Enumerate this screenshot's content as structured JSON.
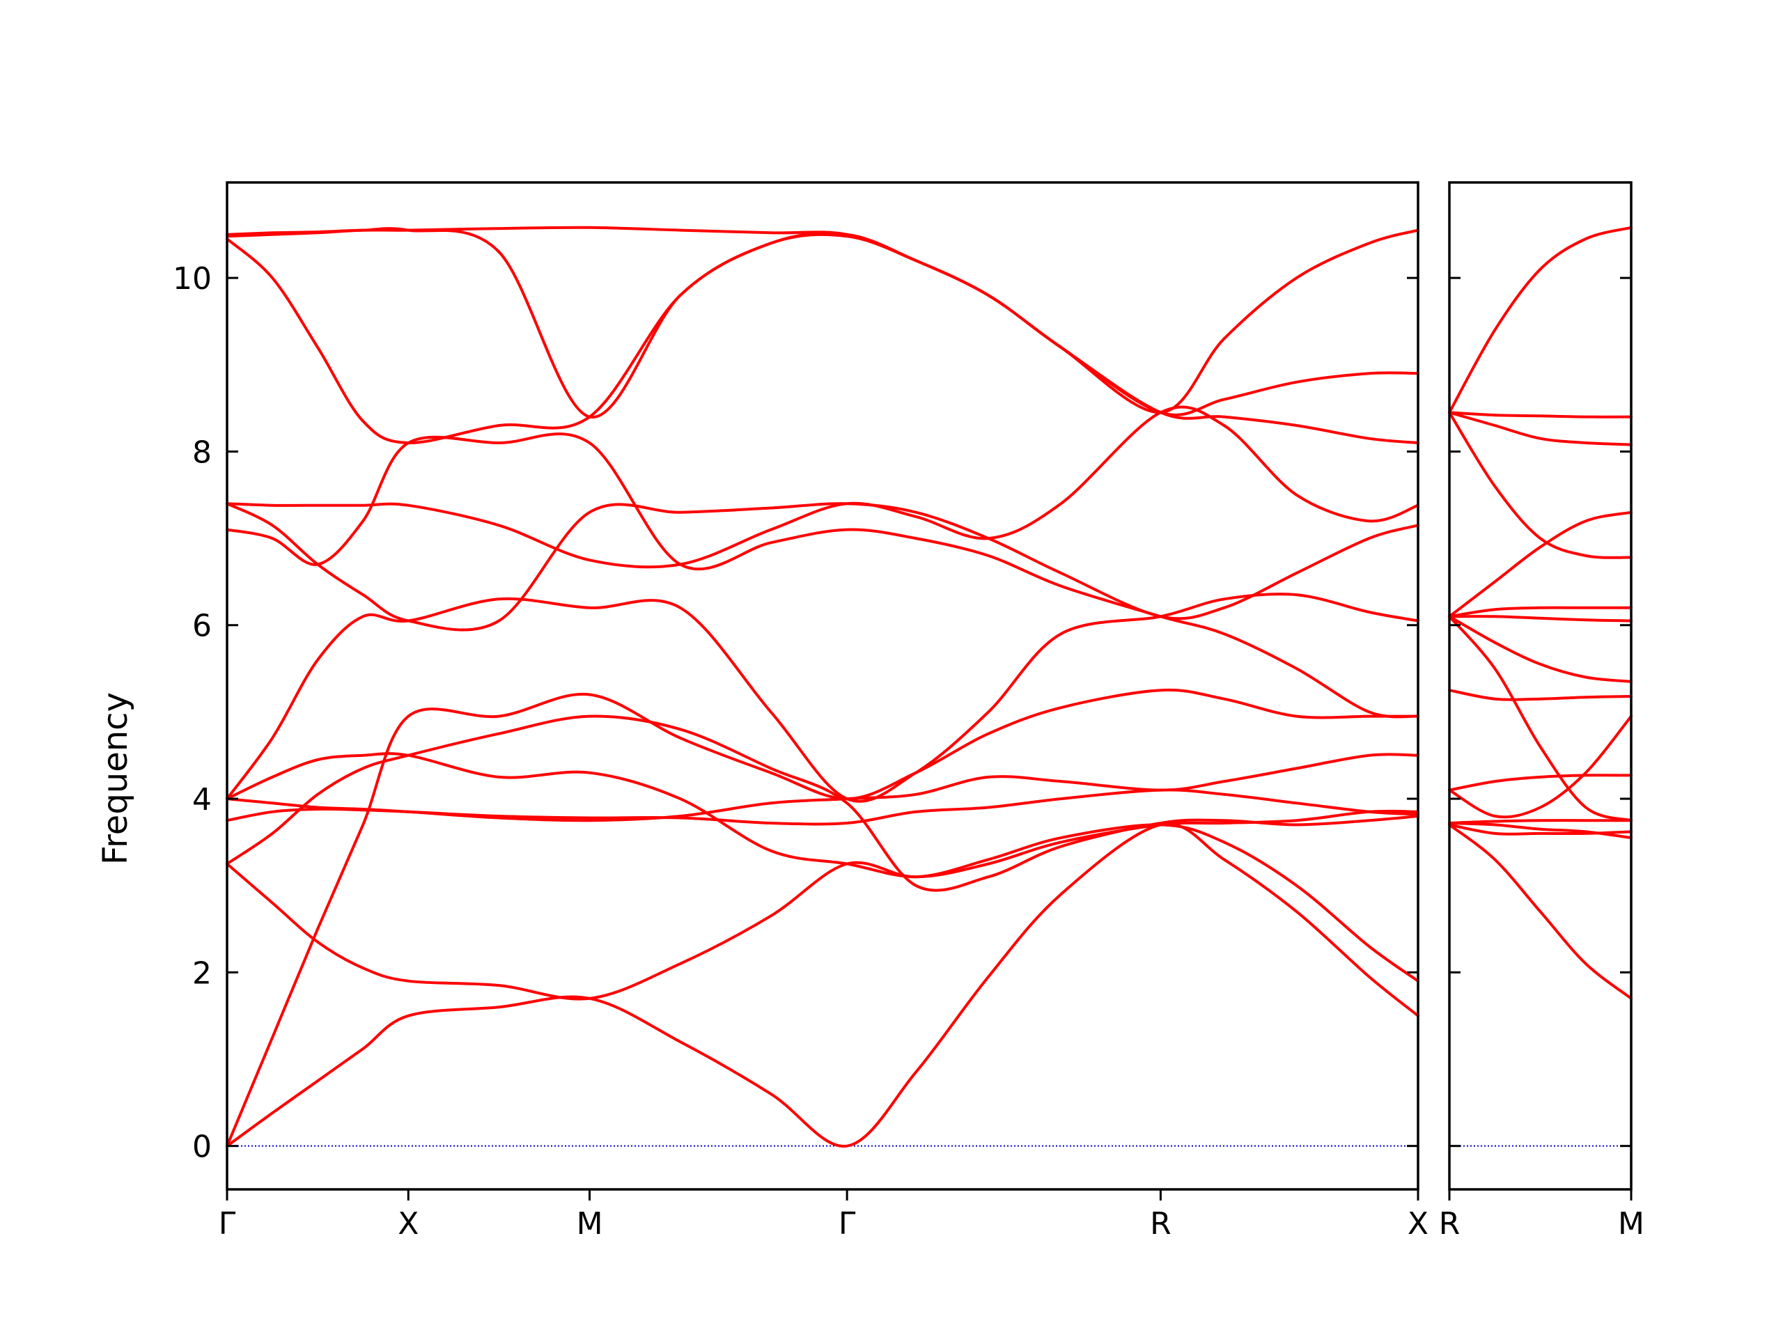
{
  "chart_data": {
    "type": "line",
    "title": "",
    "ylabel": "Frequency",
    "ylim": [
      -0.5,
      11.1
    ],
    "yticks": [
      0,
      2,
      4,
      6,
      8,
      10
    ],
    "grid": false,
    "series_color": "#ff0000",
    "zero_line_color": "#0000cc",
    "panels": [
      {
        "x_ticks": [
          {
            "label": "Γ",
            "x": 0
          },
          {
            "label": "X",
            "x": 1
          },
          {
            "label": "M",
            "x": 2
          },
          {
            "label": "Γ",
            "x": 3.42
          },
          {
            "label": "R",
            "x": 5.15
          },
          {
            "label": "X",
            "x": 6.57
          }
        ],
        "branches": [
          {
            "name": "",
            "x": [
              0,
              0.25,
              0.5,
              0.75,
              1,
              1.5,
              2,
              2.5,
              3,
              3.42,
              3.8,
              4.2,
              4.6,
              5.15,
              5.5,
              5.9,
              6.3,
              6.57
            ],
            "y": [
              0,
              0.38,
              0.75,
              1.12,
              1.5,
              1.6,
              1.7,
              1.2,
              0.6,
              0,
              0.85,
              1.95,
              2.9,
              3.7,
              3.3,
              2.7,
              1.95,
              1.5
            ]
          },
          {
            "name": "",
            "x": [
              0,
              0.25,
              0.5,
              0.75,
              1,
              1.5,
              2,
              2.5,
              3,
              3.42,
              3.8,
              4.2,
              4.6,
              5.15,
              5.5,
              5.9,
              6.3,
              6.57
            ],
            "y": [
              0,
              1.25,
              2.5,
              3.7,
              4.95,
              4.95,
              5.2,
              4.7,
              4.3,
              4.0,
              4.3,
              4.75,
              5.05,
              5.25,
              5.15,
              4.95,
              4.95,
              4.95
            ]
          },
          {
            "name": "",
            "x": [
              0,
              0.25,
              0.5,
              0.75,
              1,
              1.5,
              2,
              2.5,
              3,
              3.42,
              3.8,
              4.2,
              4.6,
              5.15,
              5.5,
              5.9,
              6.3,
              6.57
            ],
            "y": [
              3.25,
              2.8,
              2.35,
              2.05,
              1.9,
              1.85,
              1.7,
              2.1,
              2.65,
              3.25,
              3.1,
              3.3,
              3.55,
              3.7,
              3.5,
              3.0,
              2.3,
              1.9
            ]
          },
          {
            "name": "",
            "x": [
              0,
              0.25,
              0.5,
              0.75,
              1,
              1.5,
              2,
              2.5,
              3,
              3.42,
              3.8,
              4.2,
              4.6,
              5.15,
              5.5,
              5.9,
              6.3,
              6.57
            ],
            "y": [
              3.25,
              3.6,
              4.05,
              4.35,
              4.5,
              4.75,
              4.95,
              4.8,
              4.35,
              3.95,
              3.0,
              3.1,
              3.45,
              3.72,
              3.75,
              3.7,
              3.75,
              3.8
            ]
          },
          {
            "name": "",
            "x": [
              0,
              0.25,
              0.5,
              0.75,
              1,
              1.5,
              2,
              2.5,
              3,
              3.42,
              3.8,
              4.2,
              4.6,
              5.15,
              5.5,
              5.9,
              6.3,
              6.57
            ],
            "y": [
              3.75,
              3.85,
              3.88,
              3.87,
              3.85,
              3.8,
              3.78,
              3.78,
              3.72,
              3.72,
              3.85,
              3.9,
              4.0,
              4.1,
              4.05,
              3.95,
              3.85,
              3.82
            ]
          },
          {
            "name": "",
            "x": [
              0,
              0.25,
              0.5,
              0.75,
              1,
              1.5,
              2,
              2.5,
              3,
              3.42,
              3.8,
              4.2,
              4.6,
              5.15,
              5.5,
              5.9,
              6.3,
              6.57
            ],
            "y": [
              4.0,
              3.95,
              3.9,
              3.88,
              3.85,
              3.78,
              3.75,
              3.8,
              3.95,
              4.0,
              4.05,
              4.25,
              4.2,
              4.1,
              4.2,
              4.35,
              4.5,
              4.5
            ]
          },
          {
            "name": "",
            "x": [
              0,
              0.25,
              0.5,
              0.75,
              1,
              1.5,
              2,
              2.5,
              3,
              3.42,
              3.8,
              4.2,
              4.6,
              5.15,
              5.5,
              5.9,
              6.3,
              6.57
            ],
            "y": [
              4.0,
              4.7,
              5.6,
              6.1,
              6.05,
              6.3,
              6.2,
              6.2,
              5.0,
              4.0,
              4.3,
              5.0,
              5.9,
              6.1,
              6.3,
              6.35,
              6.15,
              6.05
            ]
          },
          {
            "name": "",
            "x": [
              0,
              0.25,
              0.5,
              0.75,
              1,
              1.5,
              2,
              2.5,
              3,
              3.42,
              3.8,
              4.2,
              4.6,
              5.15,
              5.5,
              5.9,
              6.3,
              6.57
            ],
            "y": [
              4.0,
              4.25,
              4.45,
              4.5,
              4.5,
              4.25,
              4.3,
              4.0,
              3.4,
              3.25,
              3.1,
              3.25,
              3.5,
              3.7,
              3.72,
              3.75,
              3.85,
              3.85
            ]
          },
          {
            "name": "",
            "x": [
              0,
              0.25,
              0.5,
              0.75,
              1,
              1.5,
              2,
              2.5,
              3,
              3.42,
              3.8,
              4.2,
              4.6,
              5.15,
              5.5,
              5.9,
              6.3,
              6.57
            ],
            "y": [
              7.1,
              7.0,
              6.7,
              7.2,
              8.1,
              8.1,
              8.1,
              6.7,
              6.95,
              7.1,
              7.0,
              6.8,
              6.45,
              6.1,
              5.9,
              5.5,
              5.0,
              4.95
            ]
          },
          {
            "name": "",
            "x": [
              0,
              0.25,
              0.5,
              0.75,
              1,
              1.5,
              2,
              2.5,
              3,
              3.42,
              3.8,
              4.2,
              4.6,
              5.15,
              5.5,
              5.9,
              6.3,
              6.57
            ],
            "y": [
              7.4,
              7.15,
              6.7,
              6.35,
              6.05,
              6.05,
              7.3,
              7.3,
              7.35,
              7.4,
              7.3,
              7.0,
              6.6,
              6.1,
              6.2,
              6.6,
              7.0,
              7.15
            ]
          },
          {
            "name": "",
            "x": [
              0,
              0.25,
              0.5,
              0.75,
              1,
              1.5,
              2,
              2.5,
              3,
              3.42,
              3.8,
              4.2,
              4.6,
              5.15,
              5.5,
              5.9,
              6.3,
              6.57
            ],
            "y": [
              7.4,
              7.38,
              7.38,
              7.38,
              7.38,
              7.15,
              6.75,
              6.7,
              7.1,
              7.4,
              7.25,
              7.0,
              7.4,
              8.45,
              8.3,
              7.5,
              7.2,
              7.38
            ]
          },
          {
            "name": "",
            "x": [
              0,
              0.25,
              0.5,
              0.75,
              1,
              1.5,
              2,
              2.5,
              3,
              3.42,
              3.8,
              4.2,
              4.6,
              5.15,
              5.5,
              5.9,
              6.3,
              6.57
            ],
            "y": [
              10.45,
              10.0,
              9.2,
              8.35,
              8.1,
              8.3,
              8.4,
              9.8,
              10.4,
              10.48,
              10.2,
              9.8,
              9.2,
              8.45,
              9.3,
              10.0,
              10.4,
              10.55
            ]
          },
          {
            "name": "",
            "x": [
              0,
              0.25,
              0.5,
              0.75,
              1,
              1.5,
              2,
              2.5,
              3,
              3.42,
              3.8,
              4.2,
              4.6,
              5.15,
              5.5,
              5.9,
              6.3,
              6.57
            ],
            "y": [
              10.48,
              10.5,
              10.52,
              10.55,
              10.55,
              10.3,
              8.4,
              9.8,
              10.4,
              10.5,
              10.2,
              9.8,
              9.2,
              8.45,
              8.4,
              8.3,
              8.15,
              8.1
            ]
          },
          {
            "name": "",
            "x": [
              0,
              0.25,
              0.5,
              0.75,
              1,
              1.5,
              2,
              2.5,
              3,
              3.42,
              3.8,
              4.2,
              4.6,
              5.15,
              5.5,
              5.9,
              6.3,
              6.57
            ],
            "y": [
              10.5,
              10.52,
              10.53,
              10.55,
              10.55,
              10.57,
              10.58,
              10.55,
              10.52,
              10.5,
              10.2,
              9.8,
              9.2,
              8.45,
              8.6,
              8.8,
              8.9,
              8.9
            ]
          }
        ]
      },
      {
        "x_ticks": [
          {
            "label": "R",
            "x": 0
          },
          {
            "label": "M",
            "x": 1
          }
        ],
        "branches": [
          {
            "name": "",
            "x": [
              0,
              0.25,
              0.5,
              0.75,
              1
            ],
            "y": [
              3.7,
              3.3,
              2.7,
              2.1,
              1.7
            ]
          },
          {
            "name": "",
            "x": [
              0,
              0.25,
              0.5,
              0.75,
              1
            ],
            "y": [
              3.7,
              3.6,
              3.6,
              3.6,
              3.62
            ]
          },
          {
            "name": "",
            "x": [
              0,
              0.25,
              0.5,
              0.75,
              1
            ],
            "y": [
              3.72,
              3.7,
              3.65,
              3.62,
              3.55
            ]
          },
          {
            "name": "",
            "x": [
              0,
              0.25,
              0.5,
              0.75,
              1
            ],
            "y": [
              3.72,
              3.74,
              3.75,
              3.75,
              3.75
            ]
          },
          {
            "name": "",
            "x": [
              0,
              0.25,
              0.5,
              0.75,
              1
            ],
            "y": [
              4.1,
              4.2,
              4.25,
              4.27,
              4.27
            ]
          },
          {
            "name": "",
            "x": [
              0,
              0.25,
              0.5,
              0.75,
              1
            ],
            "y": [
              4.1,
              3.8,
              3.9,
              4.3,
              4.95
            ]
          },
          {
            "name": "",
            "x": [
              0,
              0.25,
              0.5,
              0.75,
              1
            ],
            "y": [
              5.25,
              5.15,
              5.15,
              5.17,
              5.18
            ]
          },
          {
            "name": "",
            "x": [
              0,
              0.25,
              0.5,
              0.75,
              1
            ],
            "y": [
              6.1,
              5.8,
              5.55,
              5.4,
              5.35
            ]
          },
          {
            "name": "",
            "x": [
              0,
              0.25,
              0.5,
              0.75,
              1
            ],
            "y": [
              6.1,
              6.1,
              6.08,
              6.06,
              6.05
            ]
          },
          {
            "name": "",
            "x": [
              0,
              0.25,
              0.5,
              0.75,
              1
            ],
            "y": [
              6.1,
              6.18,
              6.2,
              6.2,
              6.2
            ]
          },
          {
            "name": "",
            "x": [
              0,
              0.25,
              0.5,
              0.75,
              1
            ],
            "y": [
              6.1,
              5.5,
              4.6,
              3.9,
              3.75
            ]
          },
          {
            "name": "",
            "x": [
              0,
              0.25,
              0.5,
              0.75,
              1
            ],
            "y": [
              6.1,
              6.5,
              6.9,
              7.2,
              7.3
            ]
          },
          {
            "name": "",
            "x": [
              0,
              0.25,
              0.5,
              0.75,
              1
            ],
            "y": [
              8.45,
              7.6,
              7.0,
              6.8,
              6.78
            ]
          },
          {
            "name": "",
            "x": [
              0,
              0.25,
              0.5,
              0.75,
              1
            ],
            "y": [
              8.45,
              8.3,
              8.15,
              8.1,
              8.08
            ]
          },
          {
            "name": "",
            "x": [
              0,
              0.25,
              0.5,
              0.75,
              1
            ],
            "y": [
              8.45,
              8.42,
              8.41,
              8.4,
              8.4
            ]
          },
          {
            "name": "",
            "x": [
              0,
              0.25,
              0.5,
              0.75,
              1
            ],
            "y": [
              8.45,
              9.4,
              10.1,
              10.45,
              10.58
            ]
          }
        ]
      }
    ]
  }
}
